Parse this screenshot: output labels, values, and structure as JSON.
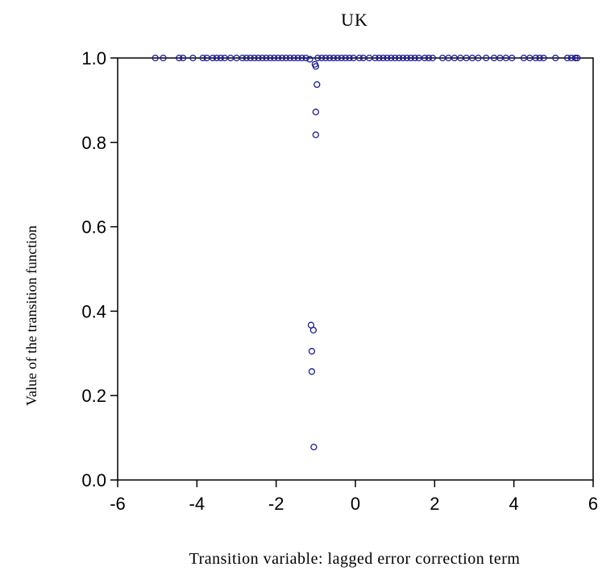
{
  "chart_data": {
    "type": "scatter",
    "title": "UK",
    "xlabel": "Transition variable: lagged error correction term",
    "ylabel": "Value of the transition function",
    "xlim": [
      -6,
      6
    ],
    "ylim": [
      0,
      1
    ],
    "xticks": [
      "-6",
      "-4",
      "-2",
      "0",
      "2",
      "4",
      "6"
    ],
    "yticks": [
      "0.0",
      "0.2",
      "0.4",
      "0.6",
      "0.8",
      "1.0"
    ],
    "grid": false,
    "marker_color": "#1a1a99",
    "series": [
      {
        "points": [
          {
            "x": -5.05,
            "y": 1.0
          },
          {
            "x": -4.85,
            "y": 1.0
          },
          {
            "x": -4.45,
            "y": 1.0
          },
          {
            "x": -4.35,
            "y": 1.0
          },
          {
            "x": -4.1,
            "y": 1.0
          },
          {
            "x": -3.85,
            "y": 1.0
          },
          {
            "x": -3.75,
            "y": 1.0
          },
          {
            "x": -3.6,
            "y": 1.0
          },
          {
            "x": -3.5,
            "y": 1.0
          },
          {
            "x": -3.4,
            "y": 1.0
          },
          {
            "x": -3.3,
            "y": 1.0
          },
          {
            "x": -3.15,
            "y": 1.0
          },
          {
            "x": -3.0,
            "y": 1.0
          },
          {
            "x": -2.85,
            "y": 1.0
          },
          {
            "x": -2.75,
            "y": 1.0
          },
          {
            "x": -2.65,
            "y": 1.0
          },
          {
            "x": -2.55,
            "y": 1.0
          },
          {
            "x": -2.45,
            "y": 1.0
          },
          {
            "x": -2.35,
            "y": 1.0
          },
          {
            "x": -2.25,
            "y": 1.0
          },
          {
            "x": -2.15,
            "y": 1.0
          },
          {
            "x": -2.05,
            "y": 1.0
          },
          {
            "x": -1.95,
            "y": 1.0
          },
          {
            "x": -1.85,
            "y": 1.0
          },
          {
            "x": -1.75,
            "y": 1.0
          },
          {
            "x": -1.65,
            "y": 1.0
          },
          {
            "x": -1.55,
            "y": 1.0
          },
          {
            "x": -1.45,
            "y": 1.0
          },
          {
            "x": -1.35,
            "y": 1.0
          },
          {
            "x": -1.25,
            "y": 1.0
          },
          {
            "x": -1.15,
            "y": 0.997
          },
          {
            "x": -1.02,
            "y": 0.985
          },
          {
            "x": -1.0,
            "y": 0.98
          },
          {
            "x": -0.95,
            "y": 1.0
          },
          {
            "x": -0.85,
            "y": 1.0
          },
          {
            "x": -0.75,
            "y": 1.0
          },
          {
            "x": -0.65,
            "y": 1.0
          },
          {
            "x": -0.55,
            "y": 1.0
          },
          {
            "x": -0.45,
            "y": 1.0
          },
          {
            "x": -0.35,
            "y": 1.0
          },
          {
            "x": -0.25,
            "y": 1.0
          },
          {
            "x": -0.15,
            "y": 1.0
          },
          {
            "x": -0.05,
            "y": 1.0
          },
          {
            "x": 0.1,
            "y": 1.0
          },
          {
            "x": 0.2,
            "y": 1.0
          },
          {
            "x": 0.35,
            "y": 1.0
          },
          {
            "x": 0.5,
            "y": 1.0
          },
          {
            "x": 0.6,
            "y": 1.0
          },
          {
            "x": 0.7,
            "y": 1.0
          },
          {
            "x": 0.8,
            "y": 1.0
          },
          {
            "x": 0.9,
            "y": 1.0
          },
          {
            "x": 1.0,
            "y": 1.0
          },
          {
            "x": 1.1,
            "y": 1.0
          },
          {
            "x": 1.2,
            "y": 1.0
          },
          {
            "x": 1.3,
            "y": 1.0
          },
          {
            "x": 1.4,
            "y": 1.0
          },
          {
            "x": 1.5,
            "y": 1.0
          },
          {
            "x": 1.6,
            "y": 1.0
          },
          {
            "x": 1.75,
            "y": 1.0
          },
          {
            "x": 1.85,
            "y": 1.0
          },
          {
            "x": 1.95,
            "y": 1.0
          },
          {
            "x": 2.2,
            "y": 1.0
          },
          {
            "x": 2.35,
            "y": 1.0
          },
          {
            "x": 2.5,
            "y": 1.0
          },
          {
            "x": 2.65,
            "y": 1.0
          },
          {
            "x": 2.8,
            "y": 1.0
          },
          {
            "x": 2.95,
            "y": 1.0
          },
          {
            "x": 3.1,
            "y": 1.0
          },
          {
            "x": 3.3,
            "y": 1.0
          },
          {
            "x": 3.5,
            "y": 1.0
          },
          {
            "x": 3.65,
            "y": 1.0
          },
          {
            "x": 3.8,
            "y": 1.0
          },
          {
            "x": 3.95,
            "y": 1.0
          },
          {
            "x": 4.25,
            "y": 1.0
          },
          {
            "x": 4.4,
            "y": 1.0
          },
          {
            "x": 4.55,
            "y": 1.0
          },
          {
            "x": 4.65,
            "y": 1.0
          },
          {
            "x": 4.75,
            "y": 1.0
          },
          {
            "x": 5.05,
            "y": 1.0
          },
          {
            "x": 5.35,
            "y": 1.0
          },
          {
            "x": 5.45,
            "y": 1.0
          },
          {
            "x": 5.55,
            "y": 1.0
          },
          {
            "x": 5.6,
            "y": 1.0
          },
          {
            "x": -0.97,
            "y": 0.937
          },
          {
            "x": -1.0,
            "y": 0.872
          },
          {
            "x": -1.0,
            "y": 0.818
          },
          {
            "x": -1.12,
            "y": 0.367
          },
          {
            "x": -1.06,
            "y": 0.355
          },
          {
            "x": -1.1,
            "y": 0.305
          },
          {
            "x": -1.1,
            "y": 0.257
          },
          {
            "x": -1.05,
            "y": 0.078
          }
        ]
      }
    ]
  }
}
